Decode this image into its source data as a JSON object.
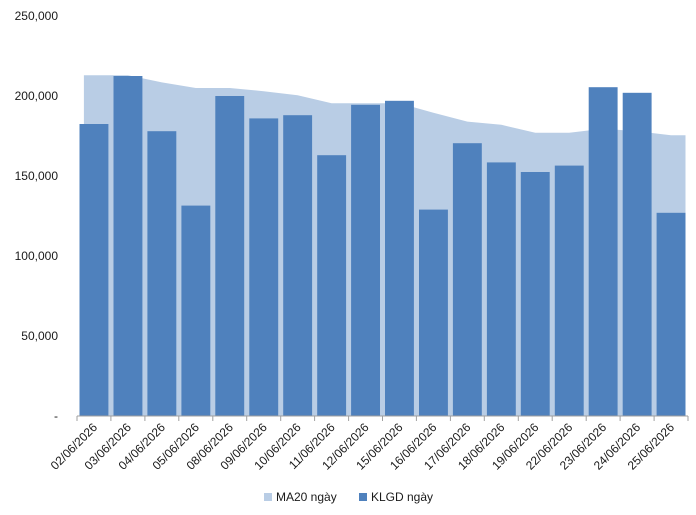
{
  "chart_data": {
    "type": "bar",
    "categories": [
      "02/06/2026",
      "03/06/2026",
      "04/06/2026",
      "05/06/2026",
      "08/06/2026",
      "09/06/2026",
      "10/06/2026",
      "11/06/2026",
      "12/06/2026",
      "15/06/2026",
      "16/06/2026",
      "17/06/2026",
      "18/06/2026",
      "19/06/2026",
      "22/06/2026",
      "23/06/2026",
      "24/06/2026",
      "25/06/2026"
    ],
    "series": [
      {
        "name": "MA20 ngày",
        "kind": "area",
        "color": "#b9cde5",
        "values": [
          213000,
          213000,
          208500,
          205000,
          205000,
          203000,
          200500,
          195500,
          195500,
          195500,
          189500,
          184000,
          182000,
          177000,
          177000,
          179500,
          178000,
          175500
        ]
      },
      {
        "name": "KLGD ngày",
        "kind": "bar",
        "color": "#4f81bd",
        "values": [
          182500,
          212500,
          178000,
          131500,
          200000,
          186000,
          188000,
          163000,
          194500,
          197000,
          129000,
          170500,
          158500,
          152500,
          156500,
          205500,
          202000,
          127000
        ]
      }
    ],
    "ylim": [
      0,
      250000
    ],
    "yticks": [
      0,
      50000,
      100000,
      150000,
      200000,
      250000
    ],
    "ytick_labels": [
      "-",
      "50,000",
      "100,000",
      "150,000",
      "200,000",
      "250,000"
    ],
    "grid": false,
    "legend_position": "bottom"
  }
}
